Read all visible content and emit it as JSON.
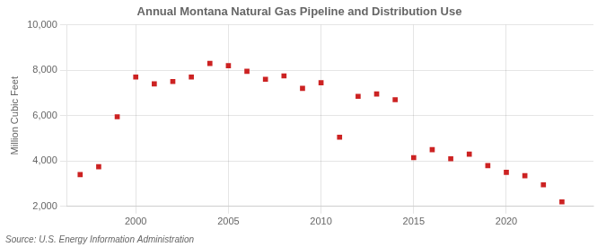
{
  "chart_data": {
    "type": "scatter",
    "title": "Annual Montana Natural Gas Pipeline and Distribution Use",
    "ylabel": "Million Cubic Feet",
    "annotations": [
      "Source: U.S. Energy Information Administration"
    ],
    "x": [
      1997,
      1998,
      1999,
      2000,
      2001,
      2002,
      2003,
      2004,
      2005,
      2006,
      2007,
      2008,
      2009,
      2010,
      2011,
      2012,
      2013,
      2014,
      2015,
      2016,
      2017,
      2018,
      2019,
      2020,
      2021,
      2022,
      2023
    ],
    "values": [
      3400,
      3750,
      5950,
      7700,
      7400,
      7500,
      7700,
      8300,
      8200,
      7950,
      7600,
      7750,
      7200,
      7450,
      5050,
      6850,
      6950,
      6700,
      4150,
      4500,
      4100,
      4300,
      3800,
      3500,
      3350,
      2950,
      2200
    ],
    "color": "#cc2222",
    "marker": "square",
    "xlim": [
      1996.3,
      2024.7
    ],
    "xticks": [
      2000,
      2005,
      2010,
      2015,
      2020
    ],
    "ylim": [
      2000,
      10000
    ],
    "yticks": [
      {
        "value": 2000,
        "label": "2,000"
      },
      {
        "value": 4000,
        "label": "4,000"
      },
      {
        "value": 6000,
        "label": "6,000"
      },
      {
        "value": 8000,
        "label": "8,000"
      },
      {
        "value": 10000,
        "label": "10,000"
      }
    ],
    "grid": true
  }
}
